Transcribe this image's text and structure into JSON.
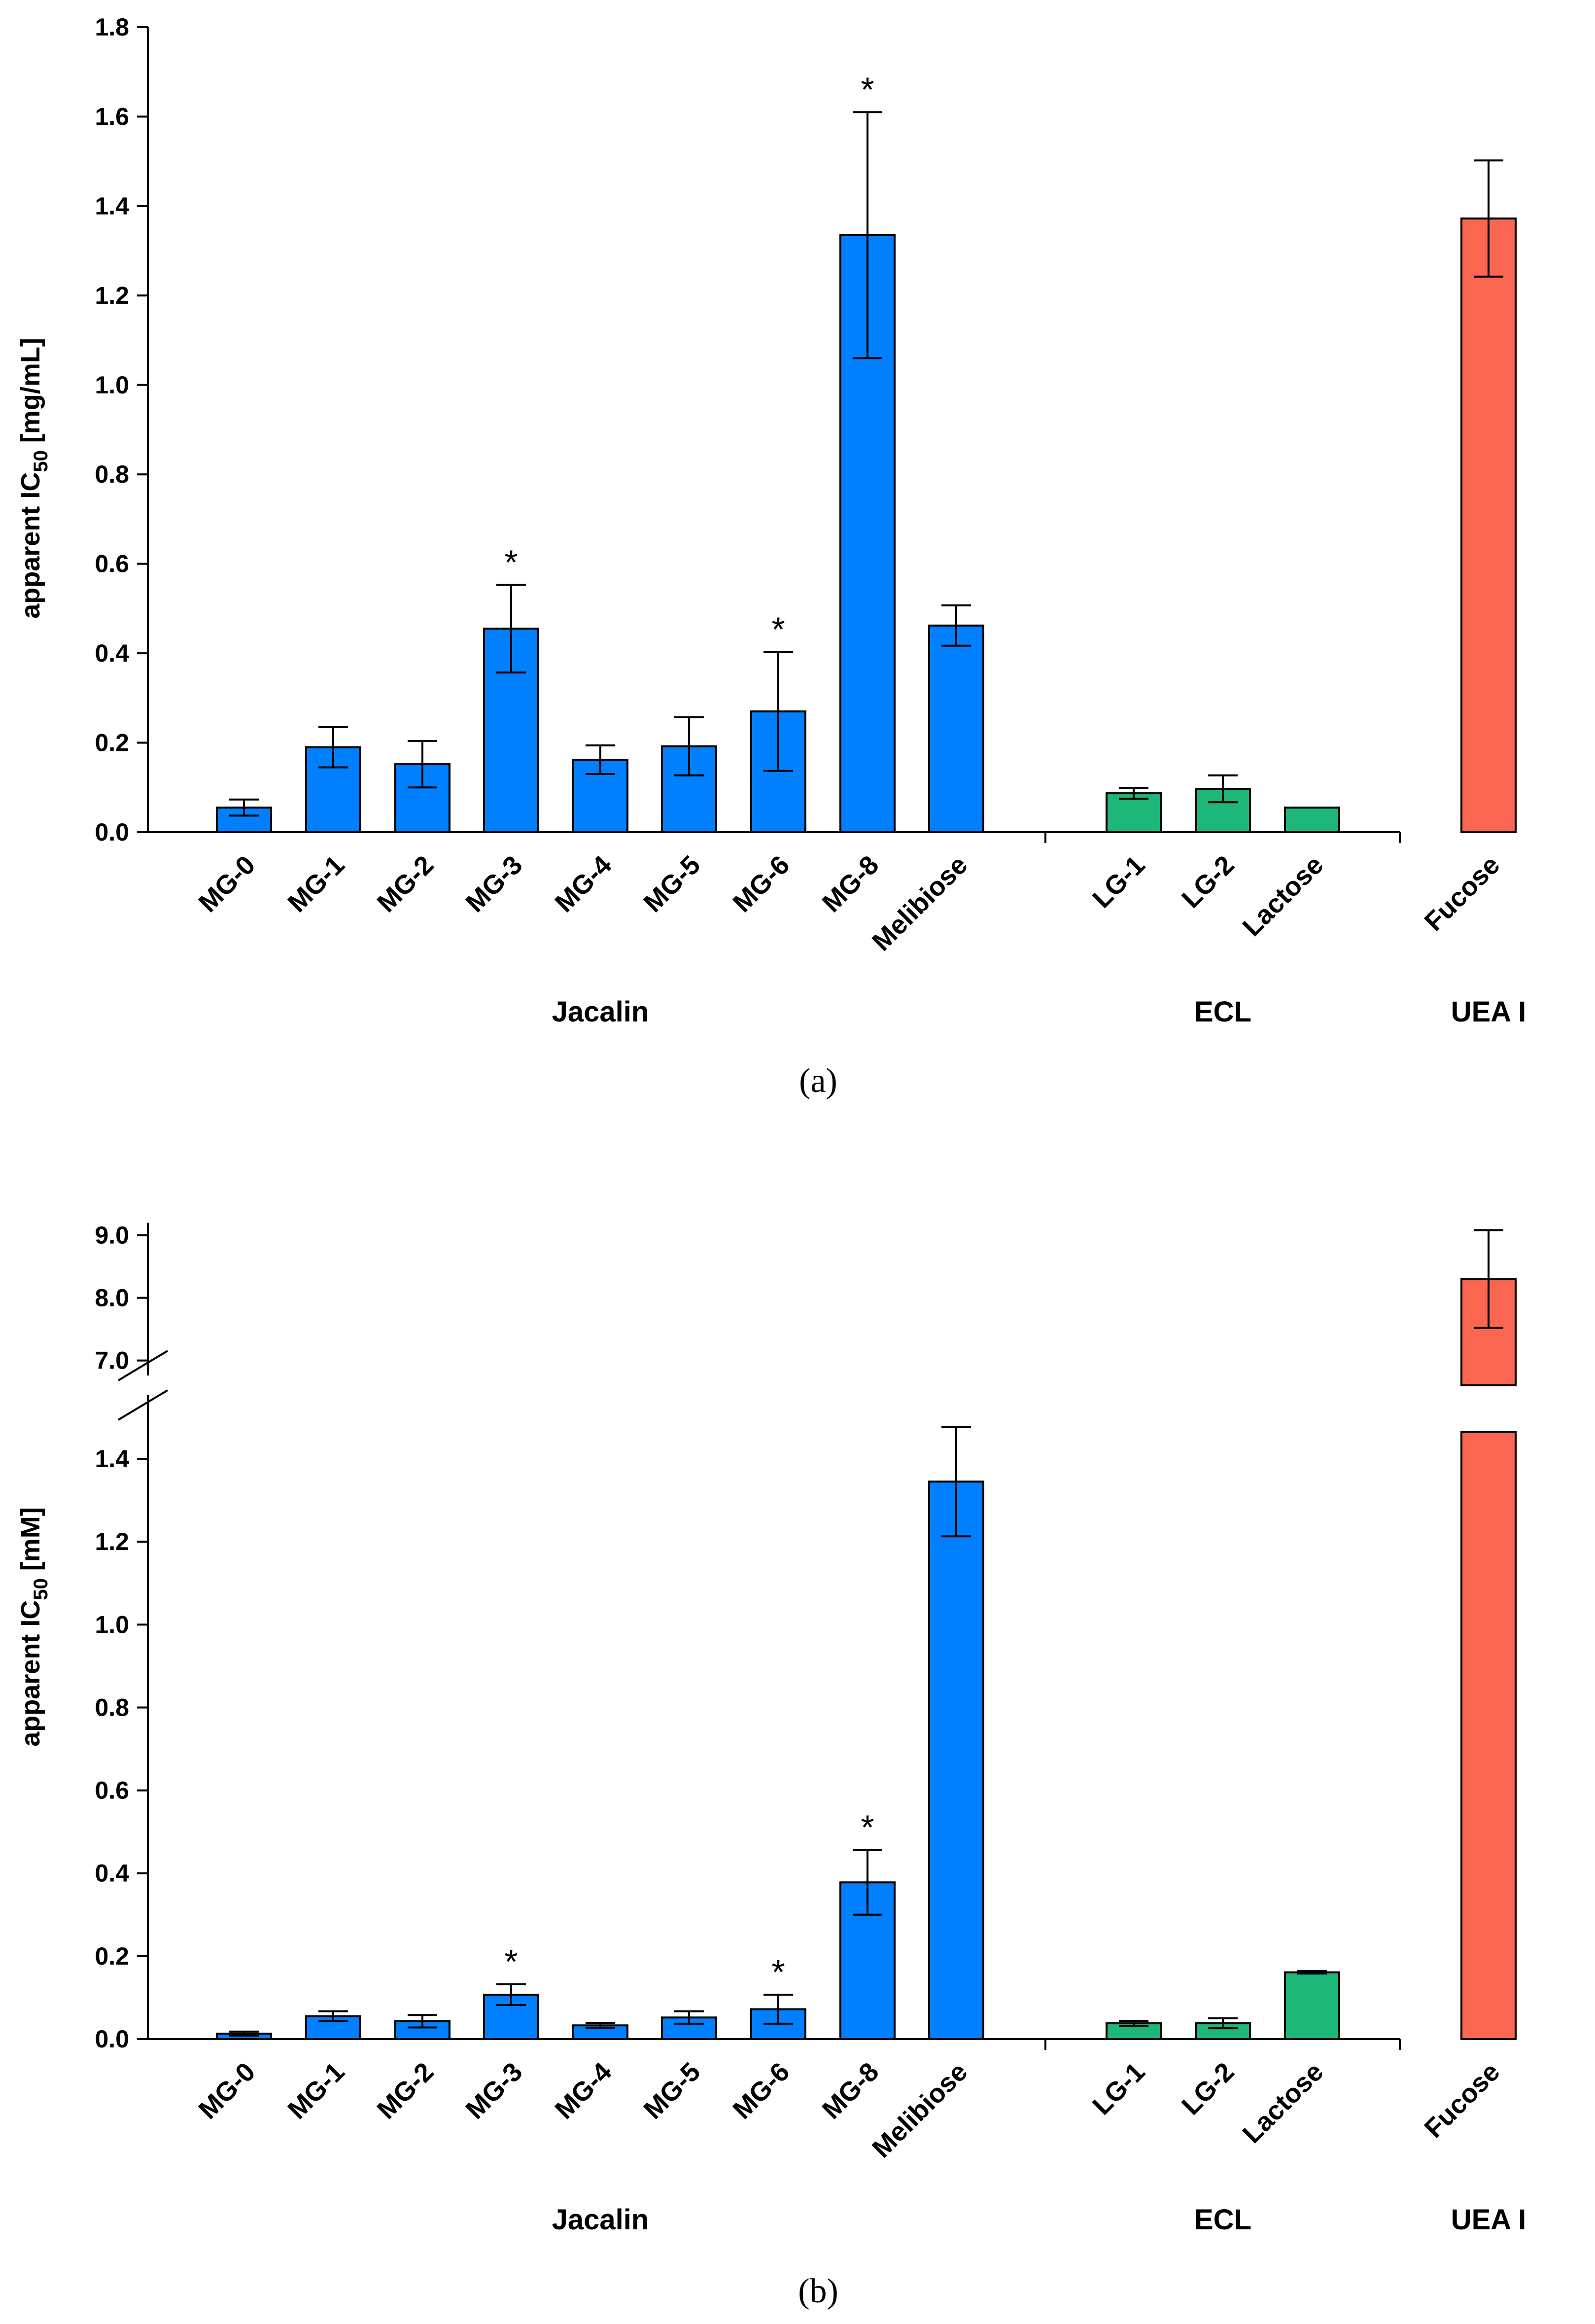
{
  "colors": {
    "jacalin": "#0080FF",
    "ecl": "#1DB77A",
    "uea": "#FA6650",
    "axis": "#000000"
  },
  "chart_data": [
    {
      "panel_label": "(a)",
      "type": "bar",
      "ylabel_pre": "apparent IC",
      "ylabel_sub": "50",
      "ylabel_post": " [mg/mL]",
      "ylim": [
        0,
        1.8
      ],
      "yticks": [
        "0.0",
        "0.2",
        "0.4",
        "0.6",
        "0.8",
        "1.0",
        "1.2",
        "1.4",
        "1.6",
        "1.8"
      ],
      "categories": [
        "MG-0",
        "MG-1",
        "MG-2",
        "MG-3",
        "MG-4",
        "MG-5",
        "MG-6",
        "MG-8",
        "Melibiose",
        "LG-1",
        "LG-2",
        "Lactose",
        "Fucose"
      ],
      "groups": [
        {
          "name": "Jacalin",
          "members": [
            "MG-0",
            "MG-1",
            "MG-2",
            "MG-3",
            "MG-4",
            "MG-5",
            "MG-6",
            "MG-8",
            "Melibiose"
          ]
        },
        {
          "name": "ECL",
          "members": [
            "LG-1",
            "LG-2",
            "Lactose"
          ]
        },
        {
          "name": "UEA I",
          "members": [
            "Fucose"
          ]
        }
      ],
      "values": [
        0.055,
        0.19,
        0.152,
        0.455,
        0.162,
        0.192,
        0.27,
        1.335,
        0.462,
        0.087,
        0.097,
        0.055,
        1.372
      ],
      "errors": [
        0.018,
        0.045,
        0.052,
        0.098,
        0.032,
        0.065,
        0.133,
        0.275,
        0.045,
        0.012,
        0.03,
        0.0,
        0.13
      ],
      "significant": [
        false,
        false,
        false,
        true,
        false,
        false,
        true,
        true,
        false,
        false,
        false,
        false,
        false
      ],
      "significance_marker": "*"
    },
    {
      "panel_label": "(b)",
      "type": "bar",
      "ylabel_pre": "apparent IC",
      "ylabel_sub": "50",
      "ylabel_post": " [mM]",
      "axis_break": {
        "lower_range": [
          0,
          1.5
        ],
        "upper_range": [
          6.8,
          9.2
        ]
      },
      "yticks_lower": [
        "0.0",
        "0.2",
        "0.4",
        "0.6",
        "0.8",
        "1.0",
        "1.2",
        "1.4"
      ],
      "yticks_upper": [
        "7.0",
        "8.0",
        "9.0"
      ],
      "categories": [
        "MG-0",
        "MG-1",
        "MG-2",
        "MG-3",
        "MG-4",
        "MG-5",
        "MG-6",
        "MG-8",
        "Melibiose",
        "LG-1",
        "LG-2",
        "Lactose",
        "Fucose"
      ],
      "groups": [
        {
          "name": "Jacalin",
          "members": [
            "MG-0",
            "MG-1",
            "MG-2",
            "MG-3",
            "MG-4",
            "MG-5",
            "MG-6",
            "MG-8",
            "Melibiose"
          ]
        },
        {
          "name": "ECL",
          "members": [
            "LG-1",
            "LG-2",
            "Lactose"
          ]
        },
        {
          "name": "UEA I",
          "members": [
            "Fucose"
          ]
        }
      ],
      "values": [
        0.013,
        0.055,
        0.043,
        0.107,
        0.033,
        0.052,
        0.072,
        0.378,
        1.345,
        0.038,
        0.038,
        0.161,
        8.3
      ],
      "errors": [
        0.005,
        0.012,
        0.015,
        0.025,
        0.006,
        0.015,
        0.035,
        0.078,
        0.132,
        0.006,
        0.012,
        0.003,
        0.78
      ],
      "significant": [
        false,
        false,
        false,
        true,
        false,
        false,
        true,
        true,
        false,
        false,
        false,
        false,
        false
      ],
      "significance_marker": "*"
    }
  ]
}
